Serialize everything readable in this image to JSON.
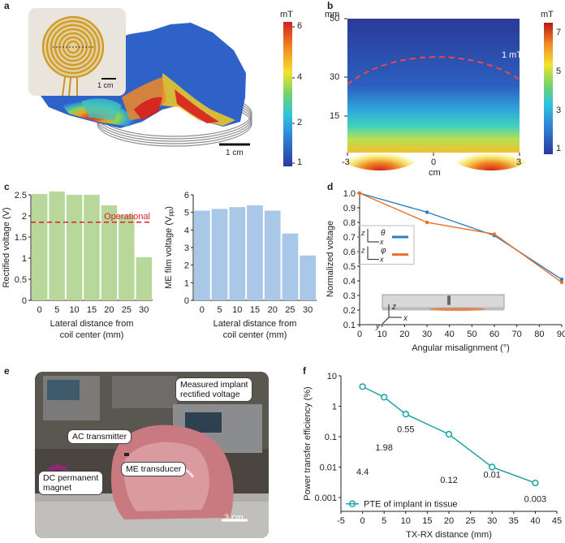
{
  "panel_a": {
    "label": "a",
    "cbar_unit": "mT",
    "cbar_ticks": [
      "6",
      "4",
      "2",
      "1"
    ],
    "inset_scale": "1 cm",
    "scale": "1 cm"
  },
  "panel_b": {
    "label": "b",
    "y_unit": "mm",
    "y_ticks": [
      "50",
      "30",
      "15"
    ],
    "x_ticks": [
      "-3",
      "0",
      "3"
    ],
    "x_unit": "cm",
    "cbar_unit": "mT",
    "cbar_ticks": [
      "7",
      "5",
      "3",
      "1"
    ],
    "contour_label": "1 mT"
  },
  "panel_e": {
    "label": "e",
    "labels": {
      "measured": "Measured implant\nrectified voltage",
      "ac": "AC transmitter",
      "me": "ME transducer",
      "dc": "DC permanent\nmagnet"
    },
    "scale": "3 cm"
  },
  "chart_data": [
    {
      "panel": "c",
      "label": "c",
      "type": "bar",
      "categories": [
        "0",
        "5",
        "10",
        "15",
        "20",
        "25",
        "30"
      ],
      "values": [
        2.52,
        2.58,
        2.5,
        2.5,
        2.25,
        2.02,
        1.02
      ],
      "ylim": [
        0,
        2.5
      ],
      "yticks": [
        "0",
        "0.5",
        "1",
        "1.5",
        "2",
        "2.5"
      ],
      "ylabel": "Rectified voltage (V)",
      "xlabel": [
        "Lateral distance from",
        "coil center (mm)"
      ],
      "threshold": 1.85,
      "threshold_label": "Operational",
      "color": "#b7d89a"
    },
    {
      "panel": "c2",
      "type": "bar",
      "categories": [
        "0",
        "5",
        "10",
        "15",
        "20",
        "25",
        "30"
      ],
      "values": [
        5.1,
        5.2,
        5.3,
        5.4,
        5.1,
        3.8,
        2.55
      ],
      "ylim": [
        0,
        6
      ],
      "yticks": [
        "0",
        "1",
        "2",
        "3",
        "4",
        "5",
        "6"
      ],
      "ylabel_main": "ME film voltage (V",
      "ylabel_sub": "pp",
      "ylabel_end": ")",
      "xlabel": [
        "Lateral distance from",
        "coil center (mm)"
      ],
      "color": "#a9c8e8"
    },
    {
      "panel": "d",
      "label": "d",
      "type": "line",
      "x": [
        0,
        30,
        60,
        90
      ],
      "series": [
        {
          "values": [
            1.0,
            0.87,
            0.71,
            0.41
          ],
          "color": "#2e7dbd"
        },
        {
          "values": [
            1.0,
            0.8,
            0.72,
            0.39
          ],
          "color": "#e8702a"
        }
      ],
      "xlim": [
        0,
        90
      ],
      "ylim": [
        0.1,
        1.0
      ],
      "xticks": [
        "0",
        "10",
        "20",
        "30",
        "40",
        "50",
        "60",
        "70",
        "80",
        "90"
      ],
      "yticks": [
        "0.1",
        "0.2",
        "0.3",
        "0.4",
        "0.5",
        "0.6",
        "0.7",
        "0.8",
        "0.9",
        "1.0"
      ],
      "xlabel": "Angular misalignment (°)",
      "ylabel": "Normalized voltage",
      "legend_symbols": {
        "theta": "θ",
        "phi": "φ",
        "z": "z",
        "x": "x",
        "y": "y"
      }
    },
    {
      "panel": "f",
      "label": "f",
      "type": "line",
      "x": [
        0,
        5,
        10,
        20,
        30,
        40
      ],
      "values": [
        4.4,
        1.98,
        0.55,
        0.12,
        0.01,
        0.003
      ],
      "value_labels": [
        "4.4",
        "1.98",
        "0.55",
        "0.12",
        "0.01",
        "0.003"
      ],
      "value_positions": [
        0.0055,
        0.035,
        0.14,
        0.003,
        0.0045,
        0.00072
      ],
      "xlim": [
        -5,
        45
      ],
      "ylim": [
        0.00035,
        10
      ],
      "yscale": "log",
      "xticks": [
        "-5",
        "0",
        "5",
        "10",
        "15",
        "20",
        "25",
        "30",
        "35",
        "40",
        "45"
      ],
      "yticks": [
        "0.001",
        "0.01",
        "0.1",
        "1",
        "10"
      ],
      "xlabel": "TX-RX distance (mm)",
      "ylabel": "Power transfer efficiency (%)",
      "legend": "PTE of implant in tissue",
      "color": "#1aa3a3"
    }
  ]
}
